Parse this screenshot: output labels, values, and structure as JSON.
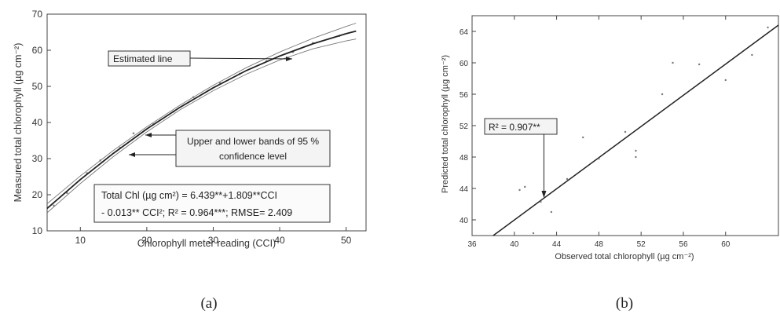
{
  "captions": {
    "a": "(a)",
    "b": "(b)"
  },
  "chart_data": [
    {
      "type": "line",
      "xlabel": "Chlorophyll meter reading (CCI)",
      "ylabel": "Measured total chlorophyll (µg cm⁻²)",
      "xlim": [
        5,
        53
      ],
      "ylim": [
        10,
        70
      ],
      "x_ticks": [
        10,
        20,
        30,
        40,
        50
      ],
      "y_ticks": [
        10,
        20,
        30,
        40,
        50,
        60,
        70
      ],
      "series": [
        {
          "role": "estimated",
          "x": [
            5,
            10,
            15,
            20,
            25,
            30,
            35,
            40,
            45,
            50,
            51.5
          ],
          "y": [
            16.2,
            24.2,
            31.5,
            38.2,
            44.2,
            49.6,
            54.4,
            58.4,
            61.8,
            64.6,
            65.3
          ]
        },
        {
          "role": "upper",
          "x": [
            5,
            10,
            15,
            20,
            25,
            30,
            35,
            40,
            45,
            50,
            51.5
          ],
          "y": [
            17.5,
            25.2,
            32.3,
            38.8,
            44.8,
            50.3,
            55.2,
            59.5,
            63.3,
            66.6,
            67.5
          ]
        },
        {
          "role": "lower",
          "x": [
            5,
            10,
            15,
            20,
            25,
            30,
            35,
            40,
            45,
            50,
            51.5
          ],
          "y": [
            15.0,
            23.1,
            30.6,
            37.4,
            43.5,
            48.8,
            53.4,
            57.3,
            60.4,
            62.6,
            63.1
          ]
        }
      ],
      "scatter": {
        "x": [
          6,
          8,
          11,
          13,
          16,
          18,
          21,
          24,
          27,
          31,
          34,
          38,
          42,
          45,
          49
        ],
        "y": [
          17,
          20.5,
          26,
          29.5,
          33,
          37,
          39.5,
          43,
          47,
          51,
          53.5,
          57,
          59.5,
          62,
          64
        ]
      },
      "annotations": [
        {
          "text": "Estimated line"
        },
        {
          "text": "Upper and lower bands of 95 %"
        },
        {
          "text": "confidence level"
        }
      ],
      "equation": [
        "Total Chl (µg cm²) = 6.439**+1.809**CCI",
        "- 0.013** CCI²; R² = 0.964***; RMSE= 2.409"
      ]
    },
    {
      "type": "scatter",
      "xlabel": "Observed total chlorophyll (µg cm⁻²)",
      "ylabel": "Predicted total chlorophyll (µg cm⁻²)",
      "xlim": [
        36,
        65
      ],
      "ylim": [
        38,
        66
      ],
      "x_ticks": [
        36,
        40,
        44,
        48,
        52,
        56,
        60
      ],
      "y_ticks": [
        40,
        44,
        48,
        52,
        56,
        60,
        64
      ],
      "points": [
        {
          "x": 40.5,
          "y": 43.8
        },
        {
          "x": 41.0,
          "y": 44.2
        },
        {
          "x": 41.8,
          "y": 38.3
        },
        {
          "x": 42.5,
          "y": 42.3
        },
        {
          "x": 43.5,
          "y": 41.0
        },
        {
          "x": 45.0,
          "y": 45.2
        },
        {
          "x": 46.5,
          "y": 50.5
        },
        {
          "x": 48.0,
          "y": 47.8
        },
        {
          "x": 50.5,
          "y": 51.2
        },
        {
          "x": 51.5,
          "y": 48.8
        },
        {
          "x": 51.5,
          "y": 48.0
        },
        {
          "x": 54.0,
          "y": 56.0
        },
        {
          "x": 55.0,
          "y": 60.0
        },
        {
          "x": 57.5,
          "y": 59.8
        },
        {
          "x": 60.0,
          "y": 57.8
        },
        {
          "x": 62.5,
          "y": 61.0
        },
        {
          "x": 64.0,
          "y": 64.5
        }
      ],
      "fit_line": {
        "x": [
          38,
          65
        ],
        "y": [
          38,
          64.8
        ]
      },
      "annotation": "R² = 0.907**",
      "arrow_target": {
        "x": 42.8,
        "y": 42.8
      }
    }
  ]
}
